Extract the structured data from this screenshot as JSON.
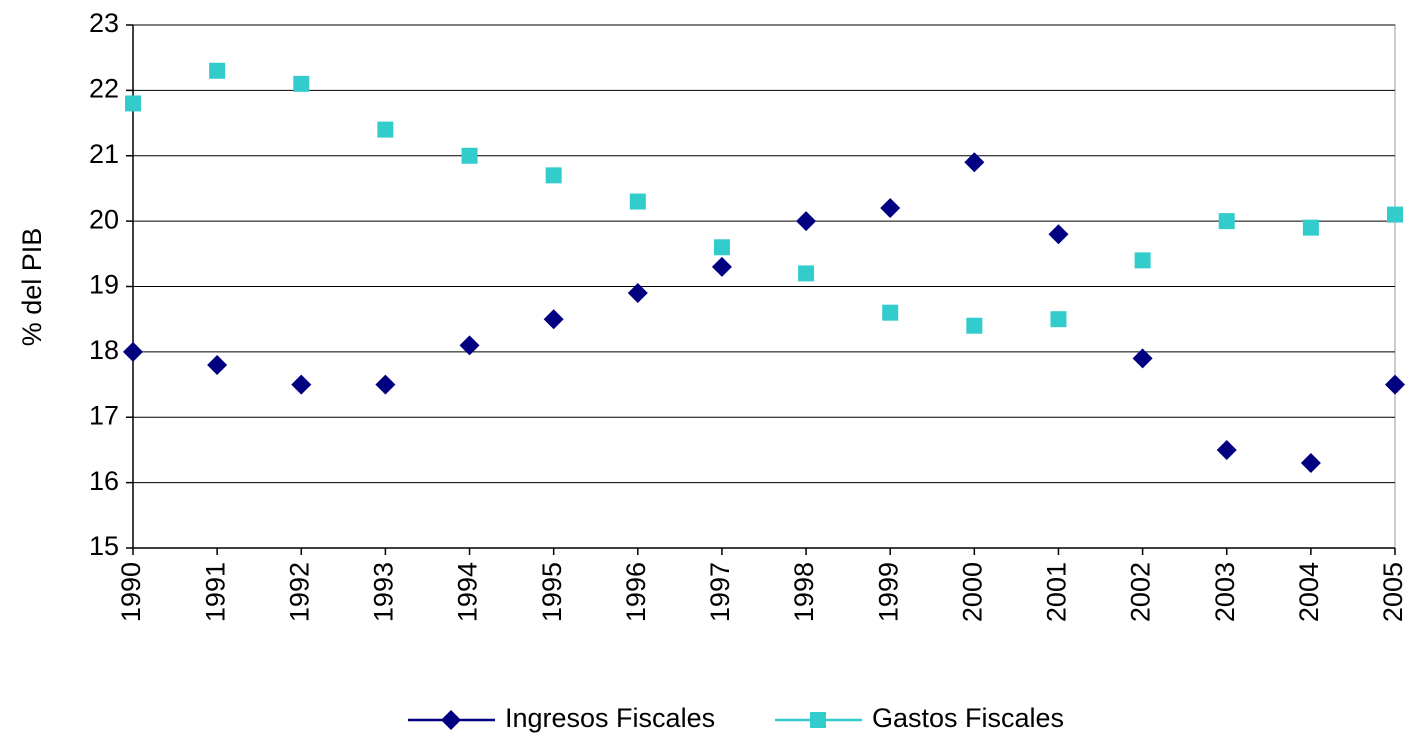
{
  "chart_data": {
    "type": "line",
    "y_label": "% del PIB",
    "categories": [
      "1990",
      "1991",
      "1992",
      "1993",
      "1994",
      "1995",
      "1996",
      "1997",
      "1998",
      "1999",
      "2000",
      "2001",
      "2002",
      "2003",
      "2004",
      "2005"
    ],
    "series": [
      {
        "name": "Ingresos Fiscales",
        "color": "#000080",
        "marker": "diamond",
        "values": [
          18.0,
          17.8,
          17.5,
          17.5,
          18.1,
          18.5,
          18.9,
          19.3,
          20.0,
          20.2,
          20.9,
          19.8,
          17.9,
          16.5,
          16.3,
          17.5
        ]
      },
      {
        "name": "Gastos Fiscales",
        "color": "#33CCCC",
        "marker": "square",
        "values": [
          21.8,
          22.3,
          22.1,
          21.4,
          21.0,
          20.7,
          20.3,
          19.6,
          19.2,
          18.6,
          18.4,
          18.5,
          19.4,
          20.0,
          19.9,
          20.1
        ]
      }
    ],
    "ylim": [
      15,
      23
    ],
    "yticks": [
      15,
      16,
      17,
      18,
      19,
      20,
      21,
      22,
      23
    ],
    "grid": true,
    "legend": "bottom"
  }
}
